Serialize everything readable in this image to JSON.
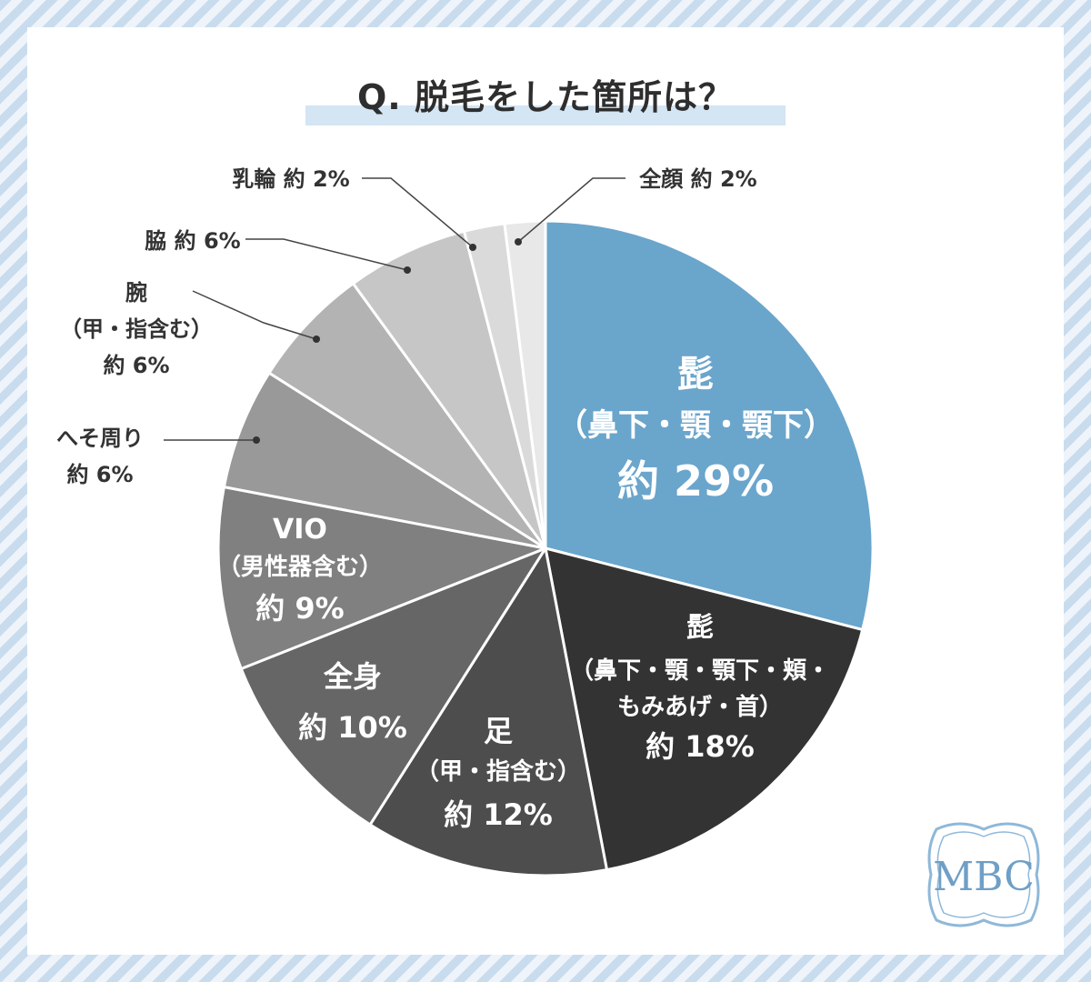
{
  "title": "Q. 脱毛をした箇所は？",
  "logo_text": "MBC",
  "colors": {
    "accent": "#6aa5cc",
    "title_band": "#d4e5f3"
  },
  "chart_data": {
    "type": "pie",
    "title": "Q. 脱毛をした箇所は？",
    "unit": "%",
    "slices": [
      {
        "lines": [
          "髭",
          "（鼻下・顎・顎下）",
          "約 29%"
        ],
        "value": 29,
        "color": "#6aa5cc",
        "label_inside": true
      },
      {
        "lines": [
          "髭",
          "（鼻下・顎・顎下・頬・",
          "もみあげ・首）",
          "約 18%"
        ],
        "value": 18,
        "color": "#333333",
        "label_inside": true
      },
      {
        "lines": [
          "足",
          "（甲・指含む）",
          "約 12%"
        ],
        "value": 12,
        "color": "#4d4d4d",
        "label_inside": true
      },
      {
        "lines": [
          "全身",
          "約 10%"
        ],
        "value": 10,
        "color": "#666666",
        "label_inside": true
      },
      {
        "lines": [
          "VIO",
          "（男性器含む）",
          "約 9%"
        ],
        "value": 9,
        "color": "#808080",
        "label_inside": true
      },
      {
        "lines": [
          "へそ周り",
          "約 6%"
        ],
        "value": 6,
        "color": "#999999",
        "label_inside": false
      },
      {
        "lines": [
          "腕",
          "（甲・指含む）",
          "約 6%"
        ],
        "value": 6,
        "color": "#b3b3b3",
        "label_inside": false
      },
      {
        "lines": [
          "脇 約 6%"
        ],
        "value": 6,
        "color": "#c6c6c6",
        "label_inside": false
      },
      {
        "lines": [
          "乳輪 約 2%"
        ],
        "value": 2,
        "color": "#dadada",
        "label_inside": false
      },
      {
        "lines": [
          "全顔 約 2%"
        ],
        "value": 2,
        "color": "#e8e8e8",
        "label_inside": false
      }
    ]
  }
}
